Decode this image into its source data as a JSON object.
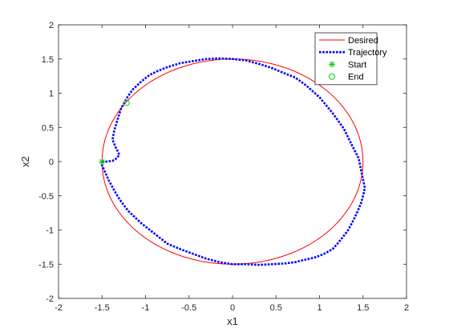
{
  "chart_data": {
    "type": "line",
    "title": "",
    "xlabel": "x1",
    "ylabel": "x2",
    "xlim": [
      -2,
      2
    ],
    "ylim": [
      -2,
      2
    ],
    "xticks": [
      "-2",
      "-1.5",
      "-1",
      "-0.5",
      "0",
      "0.5",
      "1",
      "1.5",
      "2"
    ],
    "yticks": [
      "-2",
      "-1.5",
      "-1",
      "-0.5",
      "0",
      "0.5",
      "1",
      "1.5",
      "2"
    ],
    "grid": false,
    "legend_position": "top-right",
    "series": [
      {
        "name": "Desired",
        "style": "solid",
        "color": "#ff0000",
        "shape": "circle",
        "center": [
          0,
          0
        ],
        "radius": 1.5
      },
      {
        "name": "Trajectory",
        "style": "dotted",
        "color": "#0000ff",
        "x": [
          -1.5,
          -1.45,
          -1.38,
          -1.33,
          -1.3,
          -1.34,
          -1.38,
          -1.36,
          -1.32,
          -1.28,
          -1.22,
          -1.15,
          -1.05,
          -0.95,
          -0.85,
          -0.75,
          -0.6,
          -0.45,
          -0.3,
          -0.15,
          0.0,
          0.15,
          0.3,
          0.45,
          0.6,
          0.72,
          0.85,
          1.0,
          1.15,
          1.28,
          1.38,
          1.45,
          1.49,
          1.52,
          1.51,
          1.48,
          1.43,
          1.38,
          1.33,
          1.27,
          1.22,
          1.15,
          1.05,
          0.95,
          0.85,
          0.72,
          0.6,
          0.45,
          0.3,
          0.15,
          0.0,
          -0.15,
          -0.3,
          -0.45,
          -0.6,
          -0.75,
          -0.9,
          -1.05,
          -1.2,
          -1.3,
          -1.36,
          -1.42,
          -1.47,
          -1.5,
          -1.5
        ],
        "y": [
          0.0,
          0.0,
          0.01,
          0.05,
          0.1,
          0.2,
          0.32,
          0.45,
          0.62,
          0.78,
          0.92,
          1.05,
          1.17,
          1.27,
          1.33,
          1.38,
          1.44,
          1.47,
          1.5,
          1.51,
          1.5,
          1.48,
          1.43,
          1.37,
          1.29,
          1.23,
          1.11,
          0.94,
          0.71,
          0.48,
          0.22,
          0.05,
          -0.2,
          -0.38,
          -0.45,
          -0.6,
          -0.75,
          -0.88,
          -1.0,
          -1.1,
          -1.18,
          -1.28,
          -1.35,
          -1.4,
          -1.43,
          -1.47,
          -1.49,
          -1.5,
          -1.51,
          -1.5,
          -1.5,
          -1.47,
          -1.42,
          -1.35,
          -1.28,
          -1.2,
          -1.05,
          -0.9,
          -0.72,
          -0.55,
          -0.42,
          -0.28,
          -0.14,
          -0.05,
          0.0
        ]
      },
      {
        "name": "Start",
        "style": "marker",
        "marker": "*",
        "color": "#00cc00",
        "x": [
          -1.5
        ],
        "y": [
          0.0
        ]
      },
      {
        "name": "End",
        "style": "marker",
        "marker": "o",
        "color": "#00cc00",
        "x": [
          -1.22
        ],
        "y": [
          0.86
        ]
      }
    ]
  }
}
